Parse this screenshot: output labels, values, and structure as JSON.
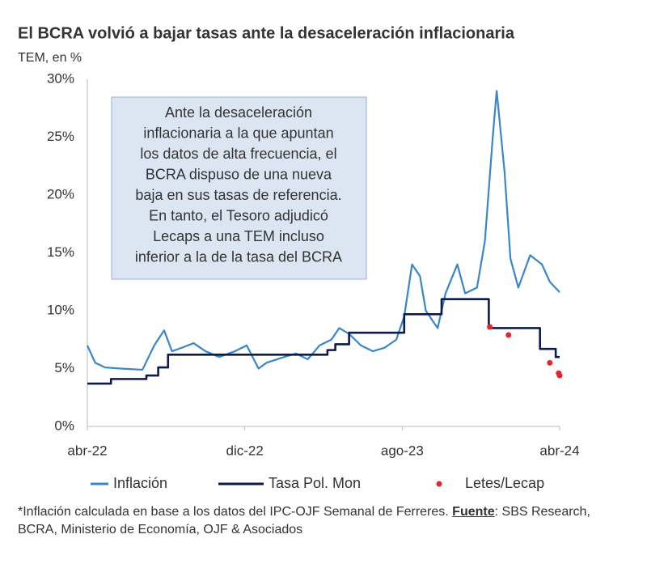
{
  "chart_data": {
    "type": "line",
    "title": "El BCRA volvió a bajar tasas ante la desaceleración inflacionaria",
    "subtitle": "TEM, en %",
    "annotation": [
      "Ante la desaceleración",
      "inflacionaria a la que apuntan",
      "los datos de alta frecuencia, el",
      "BCRA dispuso de una nueva",
      "baja en sus tasas de referencia.",
      "En tanto, el Tesoro adjudicó",
      "Lecaps a una TEM incluso",
      "inferior a la de la tasa del BCRA"
    ],
    "xlim": [
      0,
      24
    ],
    "xticks": [
      {
        "value": 0,
        "label": "abr-22"
      },
      {
        "value": 8,
        "label": "dic-22"
      },
      {
        "value": 16,
        "label": "ago-23"
      },
      {
        "value": 24,
        "label": "abr-24"
      }
    ],
    "ylim": [
      0,
      30
    ],
    "yticks": [
      {
        "value": 0,
        "label": "0%"
      },
      {
        "value": 5,
        "label": "5%"
      },
      {
        "value": 10,
        "label": "10%"
      },
      {
        "value": 15,
        "label": "15%"
      },
      {
        "value": 20,
        "label": "20%"
      },
      {
        "value": 25,
        "label": "25%"
      },
      {
        "value": 30,
        "label": "30%"
      }
    ],
    "series": [
      {
        "name": "Inflación",
        "color": "#3a86c8",
        "kind": "line",
        "x": [
          0,
          0.4,
          0.9,
          1.7,
          2.8,
          3.4,
          3.9,
          4.3,
          4.8,
          5.4,
          6.0,
          6.7,
          7.5,
          8.1,
          8.7,
          9.1,
          10.0,
          10.6,
          11.2,
          11.8,
          12.4,
          12.8,
          13.3,
          13.9,
          14.5,
          15.1,
          15.7,
          16.1,
          16.5,
          16.9,
          17.2,
          17.8,
          18.2,
          18.8,
          19.2,
          19.8,
          20.2,
          20.6,
          20.8,
          21.2,
          21.5,
          21.9,
          22.5,
          23.1,
          23.5,
          24.0
        ],
        "values": [
          7.0,
          5.5,
          5.1,
          5.0,
          4.9,
          7.0,
          8.3,
          6.5,
          6.8,
          7.2,
          6.5,
          6.0,
          6.5,
          7.0,
          5.0,
          5.5,
          6.0,
          6.3,
          5.8,
          7.0,
          7.5,
          8.5,
          8.0,
          7.0,
          6.5,
          6.8,
          7.5,
          9.5,
          14.0,
          13.0,
          10.0,
          8.5,
          11.5,
          14.0,
          11.5,
          12.0,
          16.0,
          25.0,
          29.0,
          22.0,
          14.5,
          12.0,
          14.8,
          14.0,
          12.5,
          11.6
        ]
      },
      {
        "name": "Tasa Pol. Mon",
        "color": "#0d1b4c",
        "kind": "line",
        "x": [
          0,
          1.2,
          1.2,
          3.0,
          3.0,
          3.6,
          3.6,
          4.1,
          4.1,
          12.2,
          12.2,
          12.6,
          12.6,
          13.3,
          13.3,
          16.1,
          16.1,
          18.0,
          18.0,
          20.4,
          20.4,
          23.0,
          23.0,
          23.8,
          23.8,
          24.0
        ],
        "values": [
          3.7,
          3.7,
          4.1,
          4.1,
          4.4,
          4.4,
          5.1,
          5.1,
          6.2,
          6.2,
          6.6,
          6.6,
          7.1,
          7.1,
          8.1,
          8.1,
          9.7,
          9.7,
          11.0,
          11.0,
          8.5,
          8.5,
          6.7,
          6.7,
          6.0,
          6.0
        ]
      },
      {
        "name": "Letes/Lecap",
        "color": "#e3262b",
        "kind": "scatter",
        "x": [
          20.45,
          21.4,
          23.5,
          23.95,
          24.0
        ],
        "values": [
          8.6,
          7.9,
          5.5,
          4.6,
          4.4
        ]
      }
    ],
    "footnote": [
      "*Inflación calculada en base a los datos del IPC-OJF Semanal de Ferreres. ",
      "Fuente",
      ": SBS Research, BCRA, Ministerio de Economía, OJF & Asociados"
    ]
  }
}
